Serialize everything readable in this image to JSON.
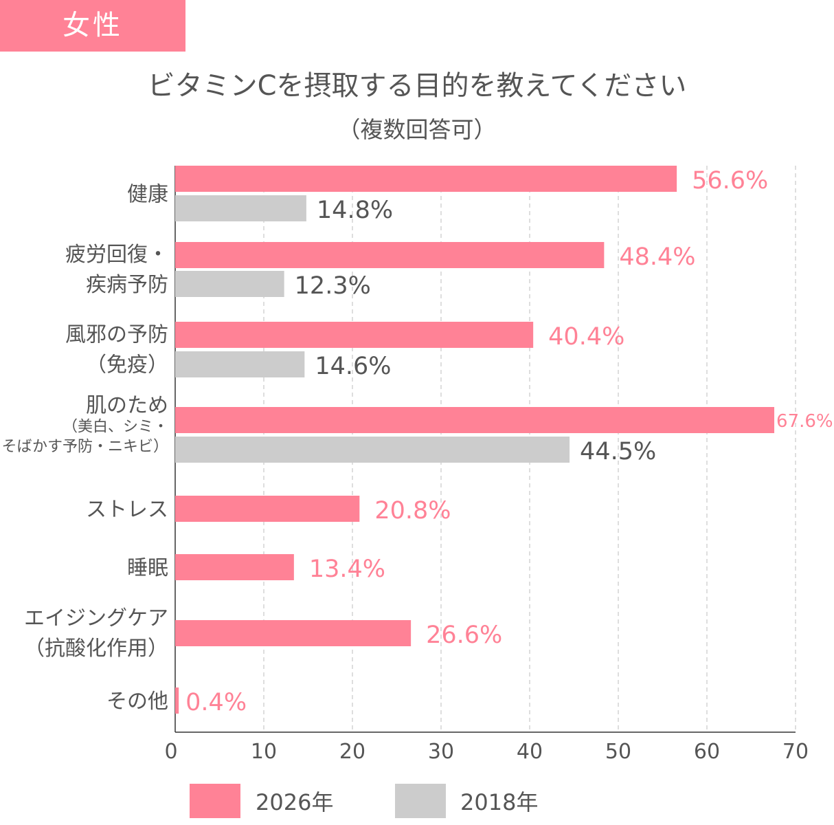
{
  "header": {
    "badge": "女性",
    "title": "ビタミンCを摂取する目的を教えてください",
    "subtitle": "（複数回答可）"
  },
  "chart_data": {
    "type": "bar",
    "orientation": "horizontal",
    "categories": [
      [
        "健康"
      ],
      [
        "疲労回復・",
        "疾病予防"
      ],
      [
        "風邪の予防",
        "（免疫）"
      ],
      [
        "肌のため",
        "（美白、シミ・",
        "そばかす予防・ニキビ）"
      ],
      [
        "ストレス"
      ],
      [
        "睡眠"
      ],
      [
        "エイジングケア",
        "（抗酸化作用）"
      ],
      [
        "その他"
      ]
    ],
    "series": [
      {
        "name": "2026年",
        "color": "#ff8296",
        "values": [
          56.6,
          48.4,
          40.4,
          67.6,
          20.8,
          13.4,
          26.6,
          0.4
        ],
        "labels": [
          "56.6%",
          "48.4%",
          "40.4%",
          "67.6%",
          "20.8%",
          "13.4%",
          "26.6%",
          "0.4%"
        ]
      },
      {
        "name": "2018年",
        "color": "#cccccc",
        "values": [
          14.8,
          12.3,
          14.6,
          44.5,
          null,
          null,
          null,
          null
        ],
        "labels": [
          "14.8%",
          "12.3%",
          "14.6%",
          "44.5%",
          null,
          null,
          null,
          null
        ]
      }
    ],
    "xlim": [
      0,
      70
    ],
    "xticks": [
      "0",
      "10",
      "20",
      "30",
      "40",
      "50",
      "60",
      "70"
    ],
    "grid": true,
    "legend": "bottom"
  }
}
